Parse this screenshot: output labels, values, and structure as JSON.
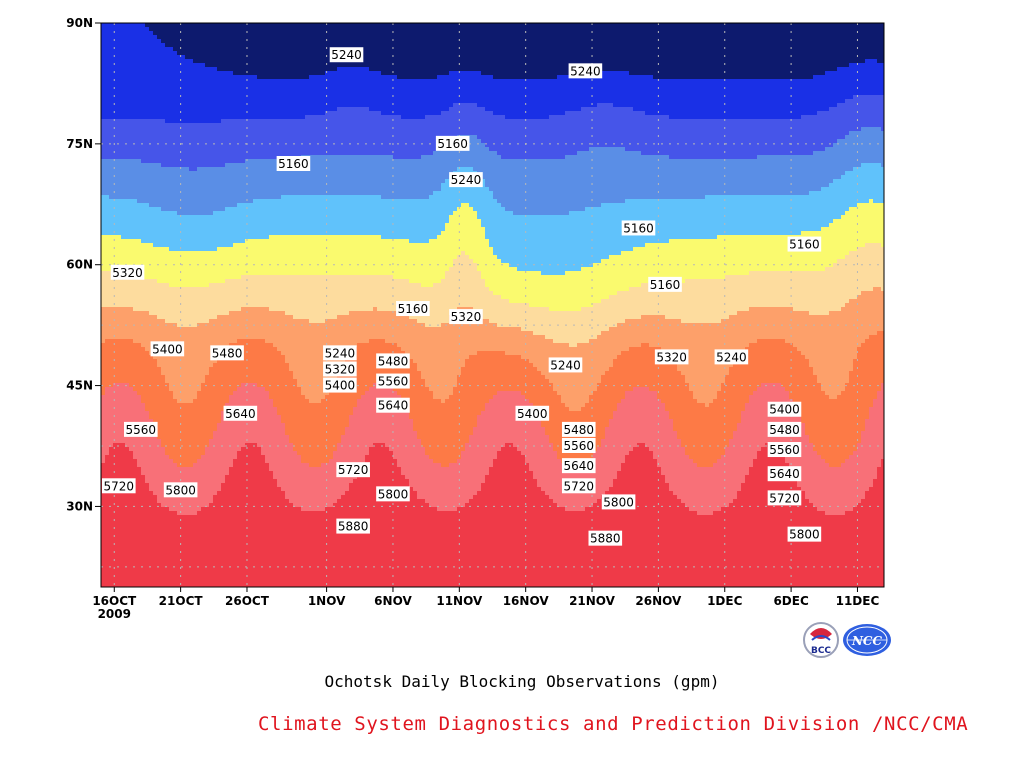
{
  "chart_data": {
    "type": "heatmap",
    "title": "Ochotsk Daily Blocking Observations (gpm)",
    "credit": "Climate System Diagnostics and Prediction Division /NCC/CMA",
    "logos": [
      "BCC",
      "NCC"
    ],
    "x_ticks": [
      {
        "label": "16OCT",
        "sub": "2009",
        "day": 0
      },
      {
        "label": "21OCT",
        "day": 5
      },
      {
        "label": "26OCT",
        "day": 10
      },
      {
        "label": "1NOV",
        "day": 16
      },
      {
        "label": "6NOV",
        "day": 21
      },
      {
        "label": "11NOV",
        "day": 26
      },
      {
        "label": "16NOV",
        "day": 31
      },
      {
        "label": "21NOV",
        "day": 36
      },
      {
        "label": "26NOV",
        "day": 41
      },
      {
        "label": "1DEC",
        "day": 46
      },
      {
        "label": "6DEC",
        "day": 51
      },
      {
        "label": "11DEC",
        "day": 56
      }
    ],
    "y_ticks": [
      {
        "label": "90N",
        "lat": 90
      },
      {
        "label": "75N",
        "lat": 75
      },
      {
        "label": "60N",
        "lat": 60
      },
      {
        "label": "45N",
        "lat": 45
      },
      {
        "label": "30N",
        "lat": 30
      }
    ],
    "xlim": [
      -1,
      58
    ],
    "ylim": [
      20,
      90
    ],
    "levels": [
      5160,
      5240,
      5320,
      5400,
      5480,
      5560,
      5640,
      5720,
      5800,
      5880
    ],
    "colors": [
      "#0d1a6e",
      "#1a30e6",
      "#4655e9",
      "#5a8ee6",
      "#60c2fb",
      "#fafa6e",
      "#fddc9e",
      "#fda06a",
      "#fd7a46",
      "#f87078",
      "#ef3a48"
    ],
    "contour_labels": [
      {
        "text": "5240",
        "day": 17.5,
        "lat": 86
      },
      {
        "text": "5240",
        "day": 35.5,
        "lat": 84
      },
      {
        "text": "5160",
        "day": 25.5,
        "lat": 75
      },
      {
        "text": "5240",
        "day": 26.5,
        "lat": 70.5
      },
      {
        "text": "5160",
        "day": 13.5,
        "lat": 72.5
      },
      {
        "text": "5160",
        "day": 39.5,
        "lat": 64.5
      },
      {
        "text": "5160",
        "day": 52,
        "lat": 62.5
      },
      {
        "text": "5160",
        "day": 41.5,
        "lat": 57.5
      },
      {
        "text": "5320",
        "day": 1,
        "lat": 59
      },
      {
        "text": "5160",
        "day": 22.5,
        "lat": 54.5
      },
      {
        "text": "5320",
        "day": 26.5,
        "lat": 53.5
      },
      {
        "text": "5400",
        "day": 4,
        "lat": 49.5
      },
      {
        "text": "5480",
        "day": 8.5,
        "lat": 49
      },
      {
        "text": "5240",
        "day": 17,
        "lat": 49
      },
      {
        "text": "5320",
        "day": 17,
        "lat": 47
      },
      {
        "text": "5400",
        "day": 17,
        "lat": 45
      },
      {
        "text": "5480",
        "day": 21,
        "lat": 48
      },
      {
        "text": "5560",
        "day": 21,
        "lat": 45.5
      },
      {
        "text": "5640",
        "day": 21,
        "lat": 42.5
      },
      {
        "text": "5240",
        "day": 34,
        "lat": 47.5
      },
      {
        "text": "5320",
        "day": 42,
        "lat": 48.5
      },
      {
        "text": "5240",
        "day": 46.5,
        "lat": 48.5
      },
      {
        "text": "5560",
        "day": 2,
        "lat": 39.5
      },
      {
        "text": "5640",
        "day": 9.5,
        "lat": 41.5
      },
      {
        "text": "5400",
        "day": 31.5,
        "lat": 41.5
      },
      {
        "text": "5480",
        "day": 35,
        "lat": 39.5
      },
      {
        "text": "5560",
        "day": 35,
        "lat": 37.5
      },
      {
        "text": "5640",
        "day": 35,
        "lat": 35
      },
      {
        "text": "5720",
        "day": 35,
        "lat": 32.5
      },
      {
        "text": "5400",
        "day": 50.5,
        "lat": 42
      },
      {
        "text": "5480",
        "day": 50.5,
        "lat": 39.5
      },
      {
        "text": "5560",
        "day": 50.5,
        "lat": 37
      },
      {
        "text": "5640",
        "day": 50.5,
        "lat": 34
      },
      {
        "text": "5720",
        "day": 50.5,
        "lat": 31
      },
      {
        "text": "5720",
        "day": -0.5,
        "lat": 32.5
      },
      {
        "text": "5800",
        "day": 5,
        "lat": 32
      },
      {
        "text": "5720",
        "day": 18,
        "lat": 34.5
      },
      {
        "text": "5800",
        "day": 21,
        "lat": 31.5
      },
      {
        "text": "5800",
        "day": 38,
        "lat": 30.5
      },
      {
        "text": "5800",
        "day": 52,
        "lat": 26.5
      },
      {
        "text": "5880",
        "day": 18,
        "lat": 27.5
      },
      {
        "text": "5880",
        "day": 37,
        "lat": 26
      }
    ]
  }
}
